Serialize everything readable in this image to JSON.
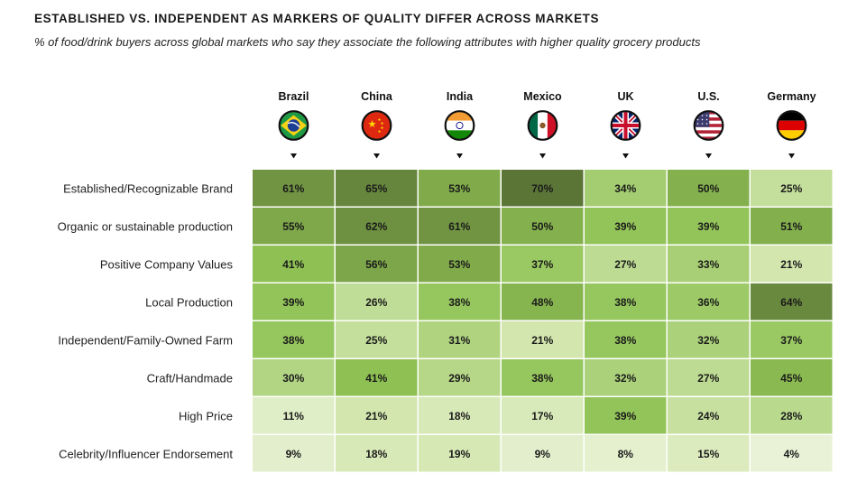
{
  "chart_data": {
    "type": "heatmap",
    "title": "ESTABLISHED VS. INDEPENDENT AS MARKERS OF QUALITY DIFFER ACROSS MARKETS",
    "subtitle": "% of food/drink buyers across global markets who say they associate the following attributes with higher quality grocery products",
    "columns": [
      "Brazil",
      "China",
      "India",
      "Mexico",
      "UK",
      "U.S.",
      "Germany"
    ],
    "column_flag_icons": [
      "brazil-flag-icon",
      "china-flag-icon",
      "india-flag-icon",
      "mexico-flag-icon",
      "uk-flag-icon",
      "us-flag-icon",
      "germany-flag-icon"
    ],
    "rows": [
      "Established/Recognizable Brand",
      "Organic or sustainable production",
      "Positive Company Values",
      "Local Production",
      "Independent/Family-Owned Farm",
      "Craft/Handmade",
      "High Price",
      "Celebrity/Influencer Endorsement"
    ],
    "values": [
      [
        61,
        65,
        53,
        70,
        34,
        50,
        25
      ],
      [
        55,
        62,
        61,
        50,
        39,
        39,
        51
      ],
      [
        41,
        56,
        53,
        37,
        27,
        33,
        21
      ],
      [
        39,
        26,
        38,
        48,
        38,
        36,
        64
      ],
      [
        38,
        25,
        31,
        21,
        38,
        32,
        37
      ],
      [
        30,
        41,
        29,
        38,
        32,
        27,
        45
      ],
      [
        11,
        21,
        18,
        17,
        39,
        24,
        28
      ],
      [
        9,
        18,
        19,
        9,
        8,
        15,
        4
      ]
    ],
    "value_suffix": "%",
    "color_scale": {
      "low": "#e8f1d4",
      "mid": "#8fbf4a",
      "high": "#5a7033"
    }
  }
}
